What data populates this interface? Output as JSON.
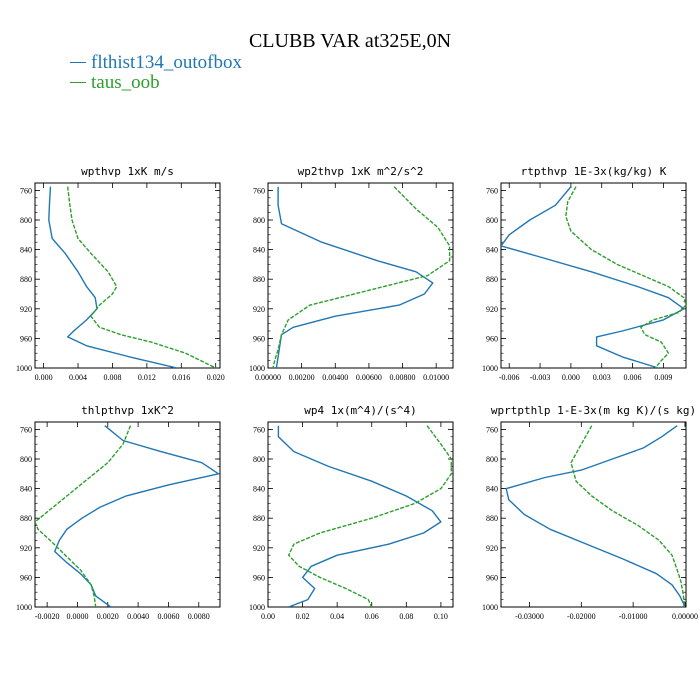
{
  "title": "CLUBB VAR at325E,0N",
  "legend": [
    {
      "label": "flthist134_outofbox",
      "color": "#1f77b4"
    },
    {
      "label": "taus_oob",
      "color": "#2ca02c"
    }
  ],
  "chart_data": [
    {
      "type": "line",
      "title": "wpthvp  1xK m/s",
      "ylim": [
        1000,
        750
      ],
      "yticks": [
        760,
        800,
        840,
        880,
        920,
        960,
        1000
      ],
      "xlim": [
        -0.001,
        0.0205
      ],
      "xticks": [
        0.0,
        0.004,
        0.008,
        0.012,
        0.016,
        0.02
      ],
      "xticklabels": [
        "0.000",
        "0.004",
        "0.008",
        "0.012",
        "0.016",
        "0.020"
      ],
      "series": [
        {
          "name": "flthist134_outofbox",
          "y": [
            755,
            775,
            800,
            825,
            845,
            870,
            890,
            905,
            920,
            935,
            950,
            958,
            970,
            985,
            1000
          ],
          "x": [
            0.0008,
            0.0007,
            0.0006,
            0.001,
            0.0025,
            0.004,
            0.005,
            0.006,
            0.0062,
            0.005,
            0.0035,
            0.0028,
            0.005,
            0.01,
            0.0155
          ]
        },
        {
          "name": "taus_oob",
          "y": [
            755,
            775,
            800,
            825,
            845,
            870,
            890,
            900,
            915,
            930,
            945,
            955,
            965,
            980,
            1000
          ],
          "x": [
            0.0028,
            0.003,
            0.0033,
            0.004,
            0.0055,
            0.0075,
            0.0085,
            0.008,
            0.0065,
            0.0055,
            0.0065,
            0.009,
            0.0125,
            0.0165,
            0.02
          ]
        }
      ]
    },
    {
      "type": "line",
      "title": "wp2thvp  1xK m^2/s^2",
      "ylim": [
        1000,
        750
      ],
      "yticks": [
        760,
        800,
        840,
        880,
        920,
        960,
        1000
      ],
      "xlim": [
        0.0,
        0.011
      ],
      "xticks": [
        0.0,
        0.002,
        0.004,
        0.006,
        0.008,
        0.01
      ],
      "xticklabels": [
        "0.00000",
        "0.00200",
        "0.00400",
        "0.00600",
        "0.00800",
        "0.01000"
      ],
      "series": [
        {
          "name": "flthist134_outofbox",
          "y": [
            755,
            780,
            805,
            830,
            855,
            870,
            885,
            900,
            915,
            930,
            945,
            955,
            970,
            985,
            1000
          ],
          "x": [
            0.0006,
            0.0006,
            0.0008,
            0.0032,
            0.0065,
            0.0088,
            0.0098,
            0.0093,
            0.0078,
            0.004,
            0.0015,
            0.0008,
            0.0007,
            0.0006,
            0.0005
          ]
        },
        {
          "name": "taus_oob",
          "y": [
            755,
            785,
            810,
            835,
            855,
            875,
            895,
            915,
            935,
            955,
            975,
            990,
            1000
          ],
          "x": [
            0.0075,
            0.0088,
            0.0101,
            0.0108,
            0.0108,
            0.0095,
            0.006,
            0.0025,
            0.0012,
            0.0008,
            0.0006,
            0.0004,
            0.0003
          ]
        }
      ]
    },
    {
      "type": "line",
      "title": "rtpthvp  1E-3x(kg/kg) K",
      "ylim": [
        1000,
        750
      ],
      "yticks": [
        760,
        800,
        840,
        880,
        920,
        960,
        1000
      ],
      "xlim": [
        -0.0068,
        0.0112
      ],
      "xticks": [
        -0.006,
        -0.003,
        0.0,
        0.003,
        0.006,
        0.009
      ],
      "xticklabels": [
        "-0.006",
        "-0.003",
        "0.000",
        "0.003",
        "0.006",
        "0.009"
      ],
      "series": [
        {
          "name": "flthist134_outofbox",
          "y": [
            755,
            780,
            800,
            820,
            835,
            850,
            870,
            890,
            905,
            920,
            935,
            950,
            958,
            970,
            985,
            1000
          ],
          "x": [
            0.0,
            -0.0015,
            -0.004,
            -0.006,
            -0.0068,
            -0.003,
            0.002,
            0.0065,
            0.0095,
            0.011,
            0.009,
            0.005,
            0.0025,
            0.0025,
            0.005,
            0.0085
          ]
        },
        {
          "name": "taus_oob",
          "y": [
            755,
            775,
            795,
            815,
            840,
            860,
            875,
            890,
            905,
            915,
            925,
            935,
            945,
            955,
            965,
            980,
            990,
            1000
          ],
          "x": [
            0.0005,
            -0.0003,
            -0.0005,
            0.0,
            0.002,
            0.0045,
            0.007,
            0.0095,
            0.011,
            0.0112,
            0.0105,
            0.008,
            0.0068,
            0.0072,
            0.0088,
            0.0095,
            0.0088,
            0.0082
          ]
        }
      ]
    },
    {
      "type": "line",
      "title": "thlpthvp  1xK^2",
      "ylim": [
        1000,
        750
      ],
      "yticks": [
        760,
        800,
        840,
        880,
        920,
        960,
        1000
      ],
      "xlim": [
        -0.0028,
        0.0094
      ],
      "xticks": [
        -0.002,
        0.0,
        0.002,
        0.004,
        0.006,
        0.008
      ],
      "xticklabels": [
        "-0.0020",
        "0.0000",
        "0.0020",
        "0.0040",
        "0.0060",
        "0.0080"
      ],
      "series": [
        {
          "name": "flthist134_outofbox",
          "y": [
            755,
            775,
            790,
            805,
            820,
            835,
            850,
            865,
            880,
            895,
            910,
            925,
            940,
            955,
            970,
            985,
            1000
          ],
          "x": [
            0.0018,
            0.003,
            0.0055,
            0.0082,
            0.0093,
            0.006,
            0.0032,
            0.0015,
            0.0003,
            -0.0007,
            -0.0012,
            -0.0015,
            -0.0007,
            0.0002,
            0.0009,
            0.0012,
            0.0022
          ]
        },
        {
          "name": "taus_oob",
          "y": [
            755,
            780,
            805,
            830,
            855,
            875,
            885,
            895,
            910,
            930,
            950,
            970,
            985,
            1000
          ],
          "x": [
            0.0035,
            0.003,
            0.002,
            0.0005,
            -0.001,
            -0.0022,
            -0.0028,
            -0.0026,
            -0.0018,
            -0.0008,
            0.0002,
            0.0009,
            0.0011,
            0.0012
          ]
        }
      ]
    },
    {
      "type": "line",
      "title": "wp4  1x(m^4)/(s^4)",
      "ylim": [
        1000,
        750
      ],
      "yticks": [
        760,
        800,
        840,
        880,
        920,
        960,
        1000
      ],
      "xlim": [
        0.0,
        0.107
      ],
      "xticks": [
        0.0,
        0.02,
        0.04,
        0.06,
        0.08,
        0.1
      ],
      "xticklabels": [
        "0.00",
        "0.02",
        "0.04",
        "0.06",
        "0.08",
        "0.10"
      ],
      "series": [
        {
          "name": "flthist134_outofbox",
          "y": [
            755,
            770,
            790,
            810,
            830,
            850,
            870,
            885,
            900,
            915,
            930,
            945,
            960,
            975,
            990,
            1000
          ],
          "x": [
            0.006,
            0.006,
            0.015,
            0.035,
            0.06,
            0.08,
            0.095,
            0.1,
            0.09,
            0.07,
            0.04,
            0.025,
            0.02,
            0.027,
            0.023,
            0.012
          ]
        },
        {
          "name": "taus_oob",
          "y": [
            755,
            780,
            800,
            820,
            840,
            860,
            880,
            900,
            915,
            930,
            945,
            960,
            975,
            990,
            1000
          ],
          "x": [
            0.092,
            0.1,
            0.106,
            0.106,
            0.1,
            0.085,
            0.06,
            0.03,
            0.015,
            0.012,
            0.018,
            0.03,
            0.045,
            0.058,
            0.06
          ]
        }
      ]
    },
    {
      "type": "line",
      "title": "wprtpthlp  1-E-3x(m kg K)/(s kg)",
      "ylim": [
        1000,
        750
      ],
      "yticks": [
        760,
        800,
        840,
        880,
        920,
        960,
        1000
      ],
      "xlim": [
        -0.0355,
        0.0002
      ],
      "xticks": [
        -0.03,
        -0.02,
        -0.01,
        0.0
      ],
      "xticklabels": [
        "-0.03000",
        "-0.02000",
        "-0.01000",
        "0.00000"
      ],
      "series": [
        {
          "name": "flthist134_outofbox",
          "y": [
            755,
            770,
            785,
            800,
            815,
            825,
            840,
            855,
            875,
            895,
            915,
            935,
            955,
            970,
            985,
            995,
            1000
          ],
          "x": [
            -0.0015,
            -0.0045,
            -0.008,
            -0.014,
            -0.02,
            -0.027,
            -0.0345,
            -0.034,
            -0.031,
            -0.026,
            -0.019,
            -0.012,
            -0.0055,
            -0.0025,
            -0.001,
            -0.0003,
            -0.0001
          ]
        },
        {
          "name": "taus_oob",
          "y": [
            755,
            780,
            805,
            830,
            850,
            870,
            890,
            910,
            930,
            950,
            965,
            980,
            990,
            1000
          ],
          "x": [
            -0.018,
            -0.02,
            -0.022,
            -0.021,
            -0.018,
            -0.014,
            -0.009,
            -0.005,
            -0.0025,
            -0.0015,
            -0.0008,
            -0.0004,
            -0.0002,
            -0.0001
          ]
        }
      ]
    }
  ]
}
